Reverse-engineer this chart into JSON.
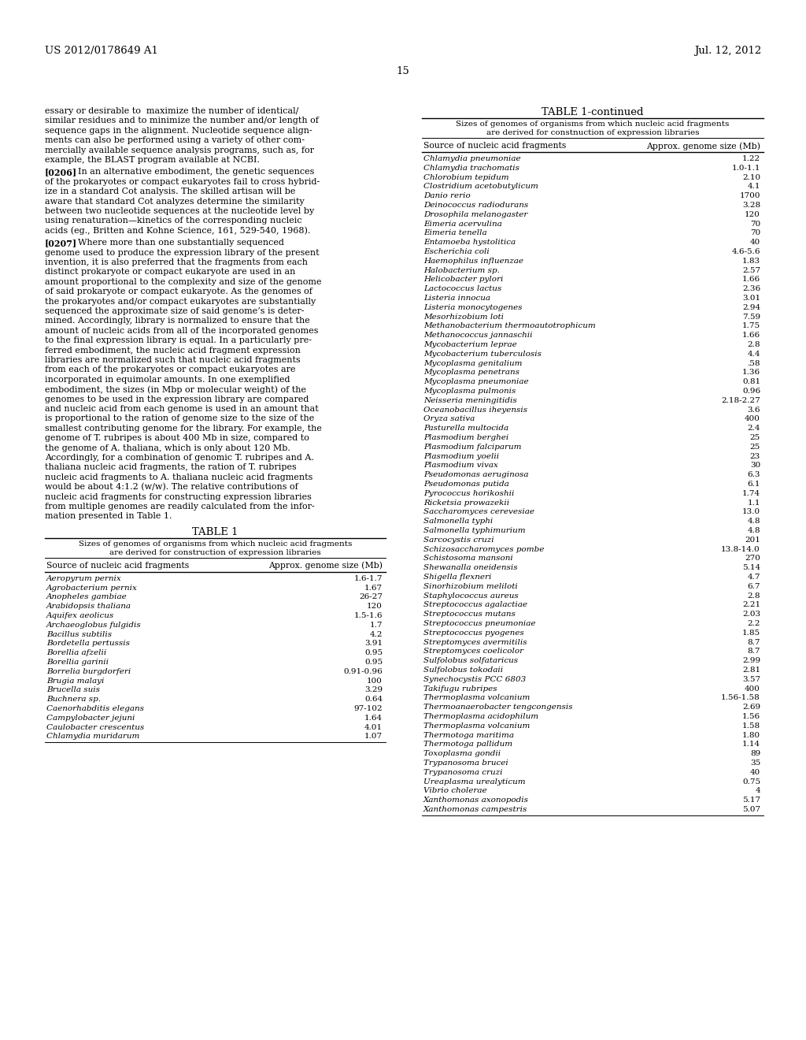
{
  "header_left": "US 2012/0178649 A1",
  "header_right": "Jul. 12, 2012",
  "page_number": "15",
  "background_color": "#ffffff",
  "text_color": "#000000",
  "para0": "essary or desirable to maximize the number of identical/similar residues and to minimize the number and/or length of sequence gaps in the alignment. Nucleotide sequence alignments can also be performed using a variety of other commercially available sequence analysis programs, such as, for example, the BLAST program available at NCBI.",
  "para0_lines": [
    "essary or desirable to  maximize the number of identical/",
    "similar residues and to minimize the number and/or length of",
    "sequence gaps in the alignment. Nucleotide sequence align-",
    "ments can also be performed using a variety of other com-",
    "mercially available sequence analysis programs, such as, for",
    "example, the BLAST program available at NCBI."
  ],
  "para1_num": "[0206]",
  "para1_lines": [
    "    In an alternative embodiment, the genetic sequences",
    "of the prokaryotes or compact eukaryotes fail to cross hybrid-",
    "ize in a standard Cot analysis. The skilled artisan will be",
    "aware that standard Cot analyzes determine the similarity",
    "between two nucleotide sequences at the nucleotide level by",
    "using renaturation—kinetics of the corresponding nucleic",
    "acids (eg., Britten and Kohne Science, 161, 529-540, 1968)."
  ],
  "para2_num": "[0207]",
  "para2_lines": [
    "    Where more than one substantially sequenced",
    "genome used to produce the expression library of the present",
    "invention, it is also preferred that the fragments from each",
    "distinct prokaryote or compact eukaryote are used in an",
    "amount proportional to the complexity and size of the genome",
    "of said prokaryote or compact eukaryote. As the genomes of",
    "the prokaryotes and/or compact eukaryotes are substantially",
    "sequenced the approximate size of said genome’s is deter-",
    "mined. Accordingly, library is normalized to ensure that the",
    "amount of nucleic acids from all of the incorporated genomes",
    "to the final expression library is equal. In a particularly pre-",
    "ferred embodiment, the nucleic acid fragment expression",
    "libraries are normalized such that nucleic acid fragments",
    "from each of the prokaryotes or compact eukaryotes are",
    "incorporated in equimolar amounts. In one exemplified",
    "embodiment, the sizes (in Mbp or molecular weight) of the",
    "genomes to be used in the expression library are compared",
    "and nucleic acid from each genome is used in an amount that",
    "is proportional to the ration of genome size to the size of the",
    "smallest contributing genome for the library. For example, the",
    "genome of T. rubripes is about 400 Mb in size, compared to",
    "the genome of A. thaliana, which is only about 120 Mb.",
    "Accordingly, for a combination of genomic T. rubripes and A.",
    "thaliana nucleic acid fragments, the ration of T. rubripes",
    "nucleic acid fragments to A. thaliana nucleic acid fragments",
    "would be about 4:1.2 (w/w). The relative contributions of",
    "nucleic acid fragments for constructing expression libraries",
    "from multiple genomes are readily calculated from the infor-",
    "mation presented in Table 1."
  ],
  "table1_title": "TABLE 1",
  "table1_subtitle1": "Sizes of genomes of organisms from which nucleic acid fragments",
  "table1_subtitle2": "are derived for construction of expression libraries",
  "table1_col1": "Source of nucleic acid fragments",
  "table1_col2": "Approx. genome size (Mb)",
  "table1_data": [
    [
      "Aeropyrum pernix",
      "1.6-1.7"
    ],
    [
      "Agrobacterium pernix",
      "1.67"
    ],
    [
      "Anopheles gambiae",
      "26-27"
    ],
    [
      "Arabidopsis thaliana",
      "120"
    ],
    [
      "Aquifex aeolicus",
      "1.5-1.6"
    ],
    [
      "Archaeoglobus fulgidis",
      "1.7"
    ],
    [
      "Bacillus subtilis",
      "4.2"
    ],
    [
      "Bordetella pertussis",
      "3.91"
    ],
    [
      "Borellia afzelii",
      "0.95"
    ],
    [
      "Borellia garinii",
      "0.95"
    ],
    [
      "Borrelia burgdorferi",
      "0.91-0.96"
    ],
    [
      "Brugia malayi",
      "100"
    ],
    [
      "Brucella suis",
      "3.29"
    ],
    [
      "Buchnera sp.",
      "0.64"
    ],
    [
      "Caenorhabditis elegans",
      "97-102"
    ],
    [
      "Campylobacter jejuni",
      "1.64"
    ],
    [
      "Caulobacter crescentus",
      "4.01"
    ],
    [
      "Chlamydia muridarum",
      "1.07"
    ]
  ],
  "table1cont_title": "TABLE 1-continued",
  "table1cont_subtitle1": "Sizes of genomes of organisms from which nucleic acid fragments",
  "table1cont_subtitle2": "are derived for constnuction of expression libraries",
  "table1cont_col1": "Source of nucleic acid fragments",
  "table1cont_col2": "Approx. genome size (Mb)",
  "table1cont_data": [
    [
      "Chlamydia pneumoniae",
      "1.22"
    ],
    [
      "Chlamydia trachomatis",
      "1.0-1.1"
    ],
    [
      "Chlorobium tepidum",
      "2.10"
    ],
    [
      "Clostridium acetobutylicum",
      "4.1"
    ],
    [
      "Danio rerio",
      "1700"
    ],
    [
      "Deinococcus radiodurans",
      "3.28"
    ],
    [
      "Drosophila melanogaster",
      "120"
    ],
    [
      "Eimeria acervulina",
      "70"
    ],
    [
      "Eimeria tenella",
      "70"
    ],
    [
      "Entamoeba hystolitica",
      "40"
    ],
    [
      "Escherichia coli",
      "4.6-5.6"
    ],
    [
      "Haemophilus influenzae",
      "1.83"
    ],
    [
      "Halobacterium sp.",
      "2.57"
    ],
    [
      "Helicobacter pylori",
      "1.66"
    ],
    [
      "Lactococcus lactus",
      "2.36"
    ],
    [
      "Listeria innocua",
      "3.01"
    ],
    [
      "Listeria monocytogenes",
      "2.94"
    ],
    [
      "Mesorhizobium loti",
      "7.59"
    ],
    [
      "Methanobacterium thermoautotrophicum",
      "1.75"
    ],
    [
      "Methanococcus jannaschii",
      "1.66"
    ],
    [
      "Mycobacterium leprae",
      "2.8"
    ],
    [
      "Mycobacterium tuberculosis",
      "4.4"
    ],
    [
      "Mycoplasma genitalium",
      ".58"
    ],
    [
      "Mycoplasma penetrans",
      "1.36"
    ],
    [
      "Mycoplasma pneumoniae",
      "0.81"
    ],
    [
      "Mycoplasma pulmonis",
      "0.96"
    ],
    [
      "Neisseria meningitidis",
      "2.18-2.27"
    ],
    [
      "Oceanobacillus iheyensis",
      "3.6"
    ],
    [
      "Oryza sativa",
      "400"
    ],
    [
      "Pasturella multocida",
      "2.4"
    ],
    [
      "Plasmodium berghei",
      "25"
    ],
    [
      "Plasmodium falciparum",
      "25"
    ],
    [
      "Plasmodium yoelii",
      "23"
    ],
    [
      "Plasmodium vivax",
      "30"
    ],
    [
      "Pseudomonas aeruginosa",
      "6.3"
    ],
    [
      "Pseudomonas putida",
      "6.1"
    ],
    [
      "Pyrococcus horikoshii",
      "1.74"
    ],
    [
      "Ricketsia prowazekii",
      "1.1"
    ],
    [
      "Saccharomyces cerevesiae",
      "13.0"
    ],
    [
      "Salmonella typhi",
      "4.8"
    ],
    [
      "Salmonella typhimurium",
      "4.8"
    ],
    [
      "Sarcocystis cruzi",
      "201"
    ],
    [
      "Schizosaccharomyces pombe",
      "13.8-14.0"
    ],
    [
      "Schistosoma mansoni",
      "270"
    ],
    [
      "Shewanalla oneidensis",
      "5.14"
    ],
    [
      "Shigella flexneri",
      "4.7"
    ],
    [
      "Sinorhizobium meliloti",
      "6.7"
    ],
    [
      "Staphylococcus aureus",
      "2.8"
    ],
    [
      "Streptococcus agalactiae",
      "2.21"
    ],
    [
      "Streptococcus mutans",
      "2.03"
    ],
    [
      "Streptococcus pneumoniae",
      "2.2"
    ],
    [
      "Streptococcus pyogenes",
      "1.85"
    ],
    [
      "Streptomyces avermitilis",
      "8.7"
    ],
    [
      "Streptomyces coelicolor",
      "8.7"
    ],
    [
      "Sulfolobus solfataricus",
      "2.99"
    ],
    [
      "Sulfolobus tokodaii",
      "2.81"
    ],
    [
      "Synechocystis PCC 6803",
      "3.57"
    ],
    [
      "Takifugu rubripes",
      "400"
    ],
    [
      "Thermoplasma volcanium",
      "1.56-1.58"
    ],
    [
      "Thermoanaerobacter tengcongensis",
      "2.69"
    ],
    [
      "Thermoplasma acidophilum",
      "1.56"
    ],
    [
      "Thermoplasma volcanium",
      "1.58"
    ],
    [
      "Thermotoga maritima",
      "1.80"
    ],
    [
      "Thermotoga pallidum",
      "1.14"
    ],
    [
      "Toxoplasma gondii",
      "89"
    ],
    [
      "Trypanosoma brucei",
      "35"
    ],
    [
      "Trypanosoma cruzi",
      "40"
    ],
    [
      "Ureaplasma urealyticum",
      "0.75"
    ],
    [
      "Vibrio cholerae",
      "4"
    ],
    [
      "Xanthomonas axonopodis",
      "5.17"
    ],
    [
      "Xanthomonas campestris",
      "5.07"
    ]
  ]
}
